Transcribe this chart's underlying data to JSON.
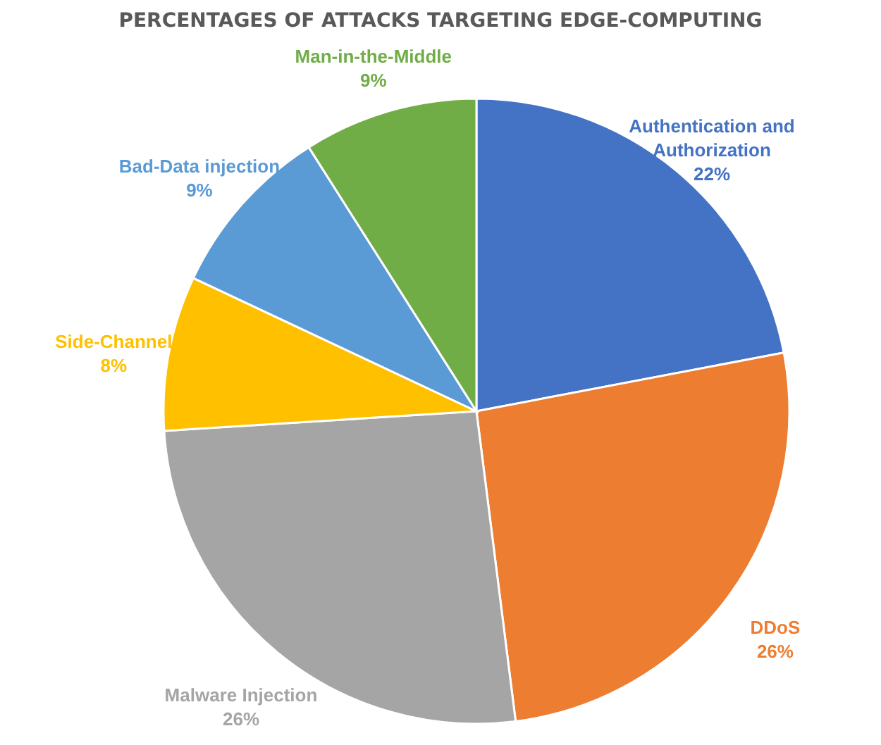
{
  "chart_data": {
    "type": "pie",
    "title": "PERCENTAGES OF ATTACKS TARGETING EDGE-COMPUTING",
    "categories": [
      "Authentication and Authorization",
      "DDoS",
      "Malware Injection",
      "Side-Channel",
      "Bad-Data injection",
      "Man-in-the-Middle"
    ],
    "values": [
      22,
      26,
      26,
      8,
      9,
      9
    ],
    "colors": [
      "#4472c4",
      "#ed7d31",
      "#a5a5a5",
      "#ffc000",
      "#5b9bd5",
      "#70ad47"
    ],
    "value_labels": [
      "22%",
      "26%",
      "26%",
      "8%",
      "9%",
      "9%"
    ],
    "legend": false
  }
}
